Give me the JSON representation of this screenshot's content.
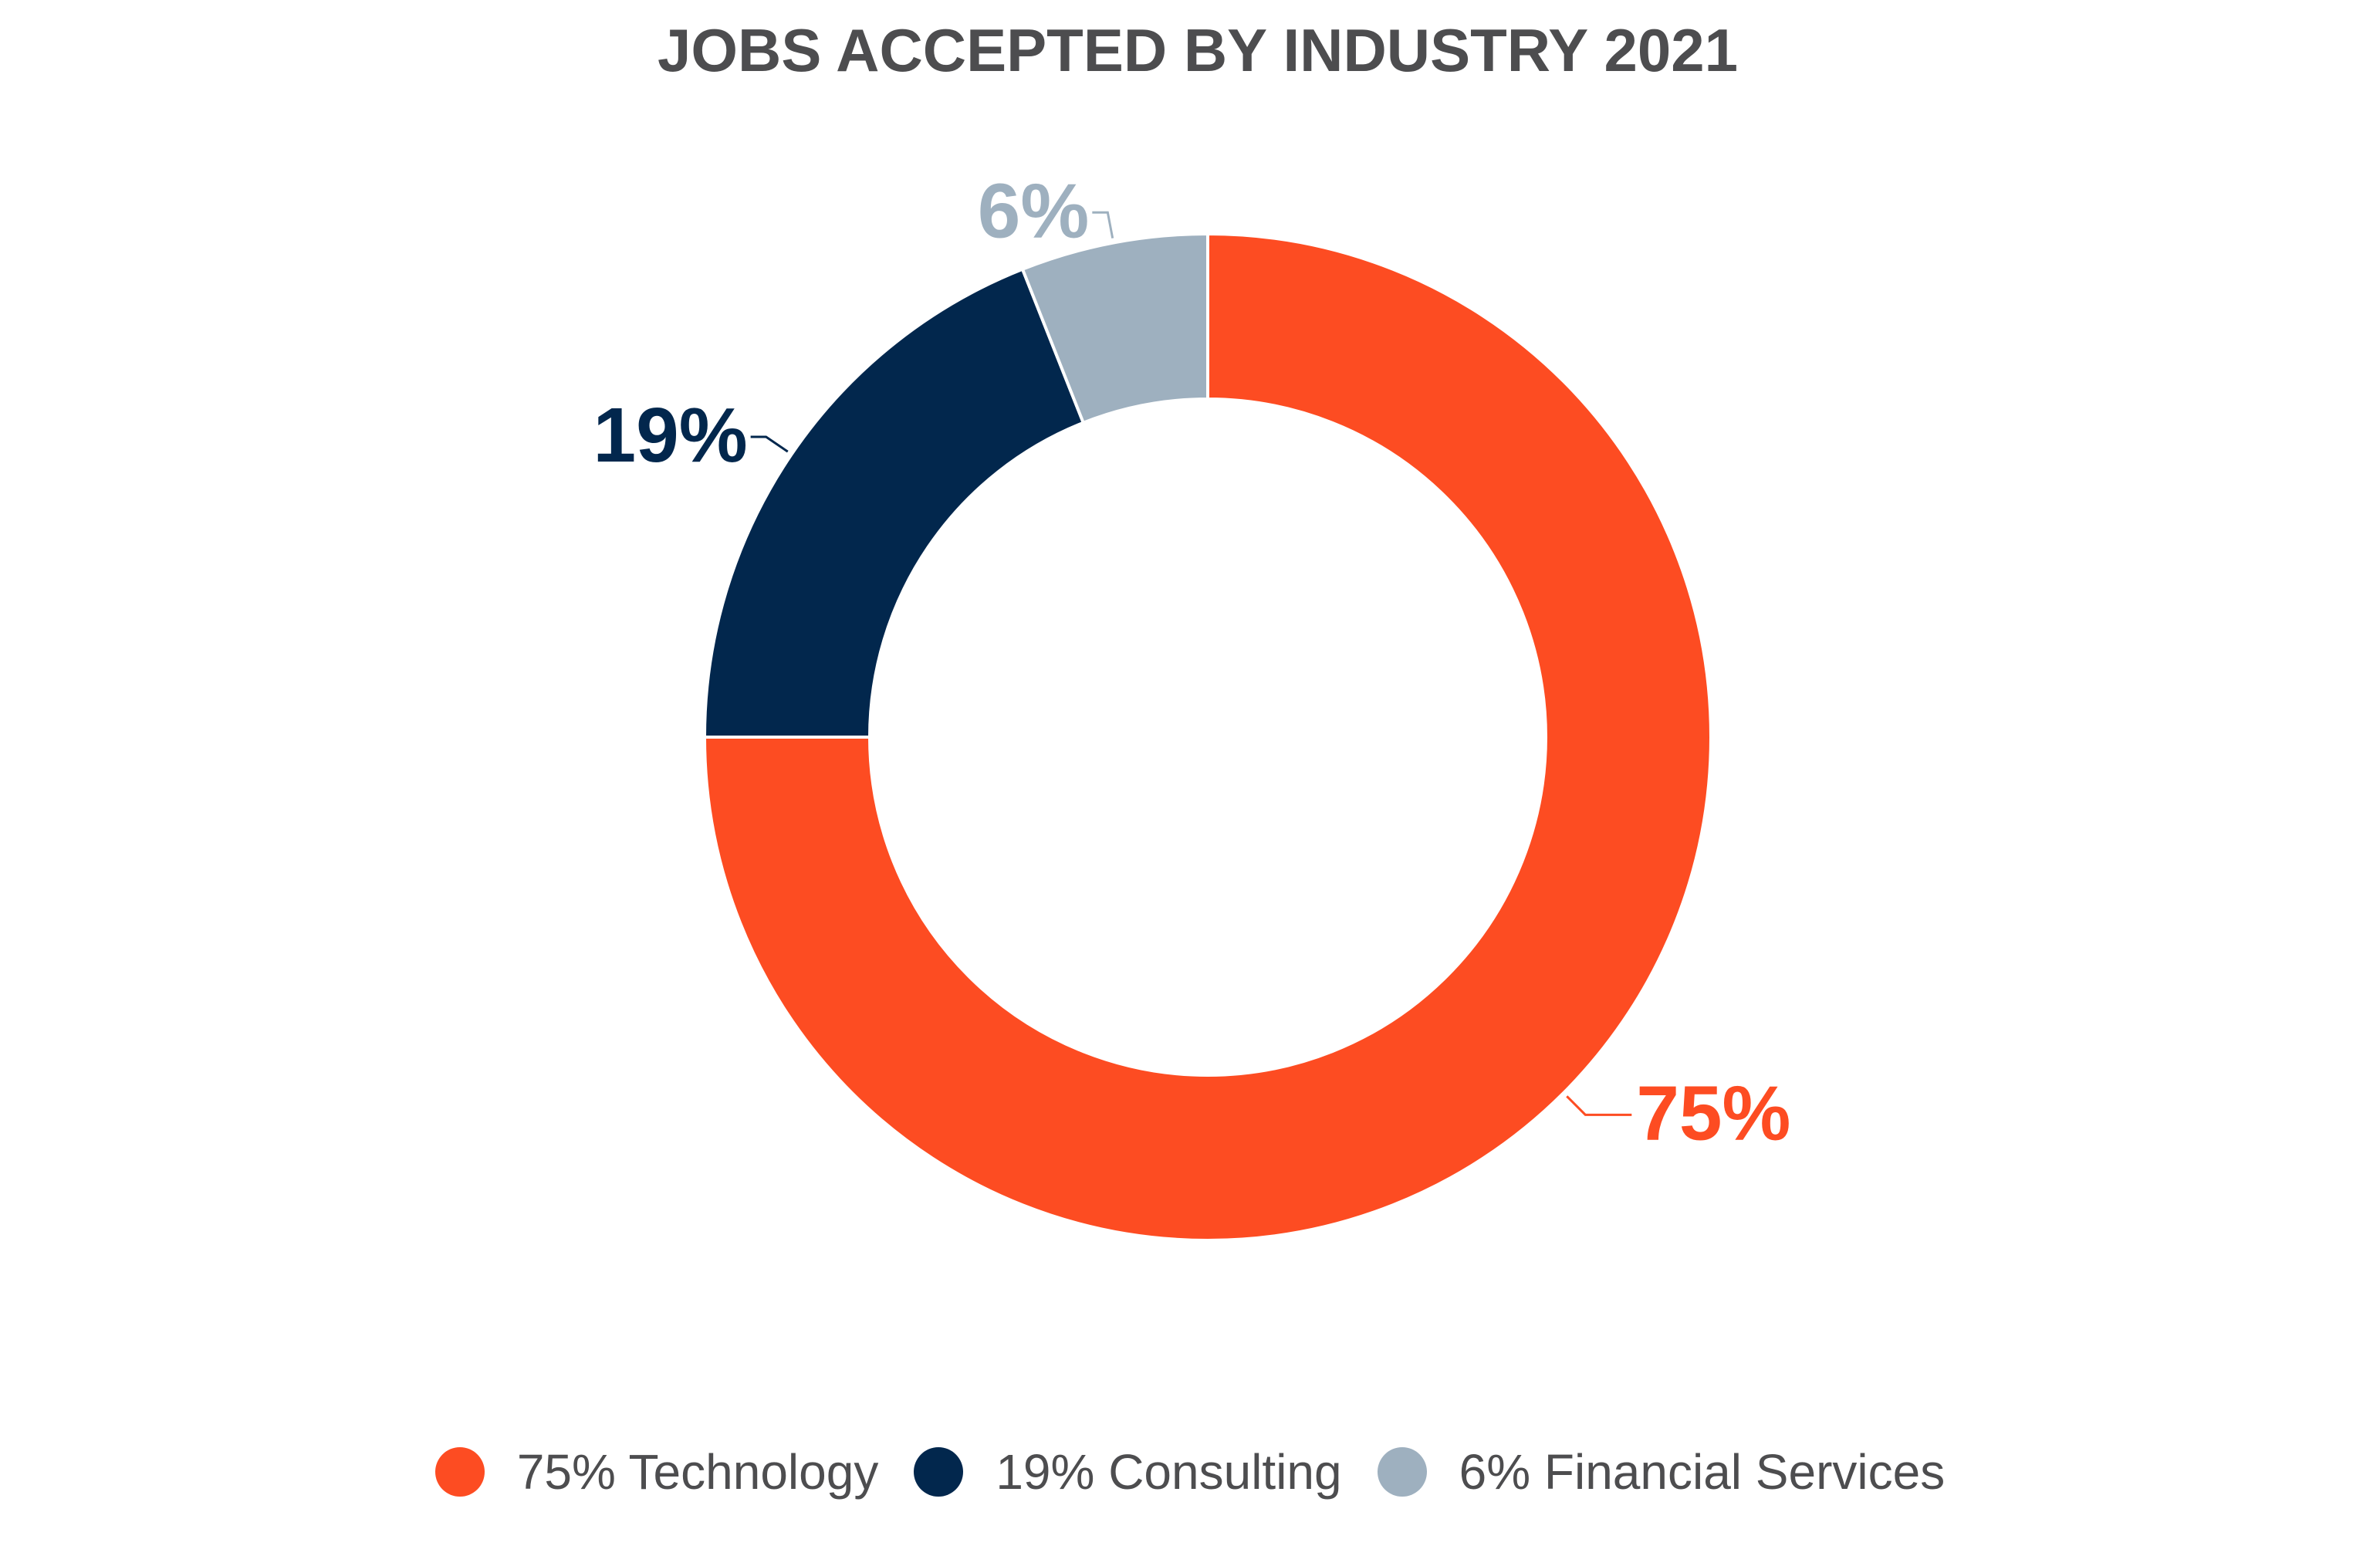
{
  "chart_data": {
    "type": "pie",
    "variant": "donut",
    "title": "JOBS ACCEPTED BY INDUSTRY 2021",
    "categories": [
      "Technology",
      "Consulting",
      "Financial Services"
    ],
    "values": [
      75,
      19,
      6
    ],
    "data_labels": [
      "75%",
      "19%",
      "6%"
    ],
    "colors": [
      "#fd4c22",
      "#02274d",
      "#9eb0bf"
    ],
    "legend": {
      "placement": "bottom",
      "entries": [
        "75% Technology",
        "19% Consulting",
        "6% Financial Services"
      ]
    }
  }
}
